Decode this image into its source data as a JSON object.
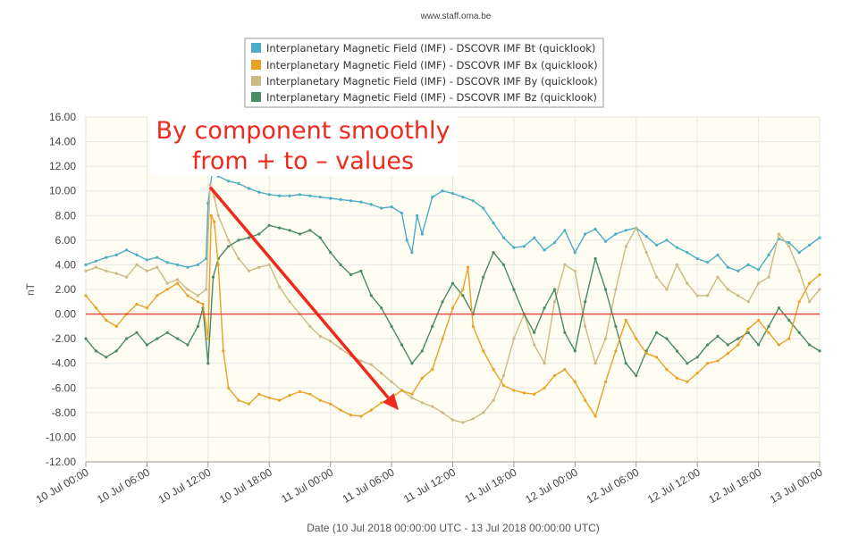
{
  "credit": "www.staff.oma.be",
  "colors": {
    "Bt": "#4cadc6",
    "Bx": "#e8a227",
    "By": "#cdb985",
    "Bz": "#4a8a64",
    "zero_line": "#e0403a",
    "annotation": "#ee2a1e",
    "plot_bg": "#fffdf2"
  },
  "chart_data": {
    "type": "line",
    "xlabel": "Date (10 Jul 2018 00:00:00 UTC - 13 Jul 2018 00:00:00 UTC)",
    "ylabel": "nT",
    "ylim": [
      -12,
      16
    ],
    "xlim_hours": [
      0,
      72
    ],
    "grid": true,
    "legend_position": "top-center",
    "y_ticks": [
      "16.00",
      "14.00",
      "12.00",
      "10.00",
      "8.00",
      "6.00",
      "4.00",
      "2.00",
      "0.00",
      "-2.00",
      "-4.00",
      "-6.00",
      "-8.00",
      "-10.00",
      "-12.00"
    ],
    "x_ticks": [
      "10 Jul 00:00",
      "10 Jul 06:00",
      "10 Jul 12:00",
      "10 Jul 18:00",
      "11 Jul 00:00",
      "11 Jul 06:00",
      "11 Jul 12:00",
      "11 Jul 18:00",
      "12 Jul 00:00",
      "12 Jul 06:00",
      "12 Jul 12:00",
      "12 Jul 18:00",
      "13 Jul 00:00"
    ],
    "series": [
      {
        "name": "Interplanetary Magnetic Field (IMF) - DSCOVR IMF Bt (quicklook)",
        "key": "Bt",
        "points": [
          [
            0,
            4.0
          ],
          [
            1,
            4.3
          ],
          [
            2,
            4.6
          ],
          [
            3,
            4.8
          ],
          [
            4,
            5.2
          ],
          [
            5,
            4.8
          ],
          [
            6,
            4.4
          ],
          [
            7,
            4.6
          ],
          [
            8,
            4.2
          ],
          [
            9,
            4.0
          ],
          [
            10,
            3.8
          ],
          [
            11,
            4.0
          ],
          [
            11.8,
            4.5
          ],
          [
            12.0,
            9.0
          ],
          [
            12.4,
            11.5
          ],
          [
            13,
            11.2
          ],
          [
            14,
            10.8
          ],
          [
            15,
            10.6
          ],
          [
            16,
            10.2
          ],
          [
            17,
            9.9
          ],
          [
            18,
            9.7
          ],
          [
            19,
            9.6
          ],
          [
            20,
            9.6
          ],
          [
            21,
            9.7
          ],
          [
            22,
            9.6
          ],
          [
            23,
            9.5
          ],
          [
            24,
            9.4
          ],
          [
            25,
            9.3
          ],
          [
            26,
            9.2
          ],
          [
            27,
            9.1
          ],
          [
            28,
            8.9
          ],
          [
            29,
            8.6
          ],
          [
            30,
            8.7
          ],
          [
            31,
            8.2
          ],
          [
            31.5,
            6.0
          ],
          [
            32,
            5.0
          ],
          [
            32.5,
            8.0
          ],
          [
            33,
            6.5
          ],
          [
            34,
            9.5
          ],
          [
            35,
            10.0
          ],
          [
            36,
            9.8
          ],
          [
            37,
            9.5
          ],
          [
            38,
            9.2
          ],
          [
            39,
            8.6
          ],
          [
            40,
            7.4
          ],
          [
            41,
            6.2
          ],
          [
            42,
            5.4
          ],
          [
            43,
            5.5
          ],
          [
            44,
            6.2
          ],
          [
            45,
            5.2
          ],
          [
            46,
            5.8
          ],
          [
            47,
            6.8
          ],
          [
            48,
            5.0
          ],
          [
            49,
            6.5
          ],
          [
            50,
            6.9
          ],
          [
            51,
            5.9
          ],
          [
            52,
            6.5
          ],
          [
            53,
            6.8
          ],
          [
            54,
            7.0
          ],
          [
            55,
            6.3
          ],
          [
            56,
            5.6
          ],
          [
            57,
            6.0
          ],
          [
            58,
            5.4
          ],
          [
            59,
            5.0
          ],
          [
            60,
            4.5
          ],
          [
            61,
            4.2
          ],
          [
            62,
            4.8
          ],
          [
            63,
            3.8
          ],
          [
            64,
            3.5
          ],
          [
            65,
            4.0
          ],
          [
            66,
            3.6
          ],
          [
            67,
            4.8
          ],
          [
            68,
            6.1
          ],
          [
            69,
            5.8
          ],
          [
            70,
            5.0
          ],
          [
            71,
            5.6
          ],
          [
            72,
            6.2
          ]
        ]
      },
      {
        "name": "Interplanetary Magnetic Field (IMF) - DSCOVR IMF Bx (quicklook)",
        "key": "Bx",
        "points": [
          [
            0,
            1.5
          ],
          [
            1,
            0.5
          ],
          [
            2,
            -0.5
          ],
          [
            3,
            -1.0
          ],
          [
            4,
            0.0
          ],
          [
            5,
            0.8
          ],
          [
            6,
            0.5
          ],
          [
            7,
            1.5
          ],
          [
            8,
            2.0
          ],
          [
            9,
            2.5
          ],
          [
            10,
            1.5
          ],
          [
            11,
            1.0
          ],
          [
            11.5,
            0.8
          ],
          [
            12,
            -2.0
          ],
          [
            12.3,
            8.0
          ],
          [
            12.6,
            7.5
          ],
          [
            13,
            4.0
          ],
          [
            13.5,
            -3.0
          ],
          [
            14,
            -6.0
          ],
          [
            15,
            -7.0
          ],
          [
            16,
            -7.3
          ],
          [
            17,
            -6.5
          ],
          [
            18,
            -6.8
          ],
          [
            19,
            -7.0
          ],
          [
            20,
            -6.6
          ],
          [
            21,
            -6.3
          ],
          [
            22,
            -6.5
          ],
          [
            23,
            -7.0
          ],
          [
            24,
            -7.3
          ],
          [
            25,
            -7.8
          ],
          [
            26,
            -8.2
          ],
          [
            27,
            -8.3
          ],
          [
            28,
            -7.8
          ],
          [
            29,
            -7.2
          ],
          [
            30,
            -6.8
          ],
          [
            31,
            -6.2
          ],
          [
            32,
            -6.5
          ],
          [
            33,
            -5.2
          ],
          [
            34,
            -4.5
          ],
          [
            35,
            -2.0
          ],
          [
            36,
            0.5
          ],
          [
            37,
            2.0
          ],
          [
            37.5,
            3.8
          ],
          [
            38,
            -1.0
          ],
          [
            39,
            -3.0
          ],
          [
            40,
            -4.5
          ],
          [
            41,
            -5.8
          ],
          [
            42,
            -6.2
          ],
          [
            43,
            -6.4
          ],
          [
            44,
            -6.5
          ],
          [
            45,
            -6.0
          ],
          [
            46,
            -5.0
          ],
          [
            47,
            -4.5
          ],
          [
            48,
            -5.5
          ],
          [
            49,
            -7.0
          ],
          [
            50,
            -8.3
          ],
          [
            51,
            -5.5
          ],
          [
            52,
            -3.0
          ],
          [
            53,
            -0.5
          ],
          [
            54,
            -2.0
          ],
          [
            55,
            -3.2
          ],
          [
            56,
            -3.5
          ],
          [
            57,
            -4.5
          ],
          [
            58,
            -5.2
          ],
          [
            59,
            -5.5
          ],
          [
            60,
            -4.8
          ],
          [
            61,
            -4.0
          ],
          [
            62,
            -3.8
          ],
          [
            63,
            -3.2
          ],
          [
            64,
            -2.5
          ],
          [
            65,
            -1.2
          ],
          [
            66,
            -0.5
          ],
          [
            67,
            -1.5
          ],
          [
            68,
            -2.5
          ],
          [
            69,
            -2.0
          ],
          [
            70,
            1.0
          ],
          [
            71,
            2.5
          ],
          [
            72,
            3.2
          ]
        ]
      },
      {
        "name": "Interplanetary Magnetic Field (IMF) - DSCOVR IMF By (quicklook)",
        "key": "By",
        "points": [
          [
            0,
            3.5
          ],
          [
            1,
            3.8
          ],
          [
            2,
            3.5
          ],
          [
            3,
            3.3
          ],
          [
            4,
            3.0
          ],
          [
            5,
            4.0
          ],
          [
            6,
            3.5
          ],
          [
            7,
            3.8
          ],
          [
            8,
            2.5
          ],
          [
            9,
            2.8
          ],
          [
            10,
            2.0
          ],
          [
            11,
            1.5
          ],
          [
            11.8,
            2.0
          ],
          [
            12.2,
            10.5
          ],
          [
            12.6,
            9.5
          ],
          [
            13,
            8.0
          ],
          [
            14,
            6.0
          ],
          [
            15,
            4.5
          ],
          [
            16,
            3.5
          ],
          [
            17,
            3.8
          ],
          [
            18,
            4.0
          ],
          [
            19,
            2.2
          ],
          [
            20,
            1.0
          ],
          [
            21,
            0.0
          ],
          [
            22,
            -1.0
          ],
          [
            23,
            -1.8
          ],
          [
            24,
            -2.2
          ],
          [
            25,
            -2.8
          ],
          [
            26,
            -3.4
          ],
          [
            27,
            -3.8
          ],
          [
            28,
            -4.1
          ],
          [
            29,
            -4.8
          ],
          [
            30,
            -5.5
          ],
          [
            31,
            -6.2
          ],
          [
            32,
            -6.8
          ],
          [
            33,
            -7.2
          ],
          [
            34,
            -7.5
          ],
          [
            35,
            -8.0
          ],
          [
            36,
            -8.6
          ],
          [
            37,
            -8.8
          ],
          [
            38,
            -8.5
          ],
          [
            39,
            -8.0
          ],
          [
            40,
            -7.0
          ],
          [
            41,
            -5.0
          ],
          [
            42,
            -2.0
          ],
          [
            43,
            0.0
          ],
          [
            44,
            -2.5
          ],
          [
            45,
            -4.0
          ],
          [
            46,
            1.0
          ],
          [
            47,
            4.0
          ],
          [
            48,
            3.5
          ],
          [
            49,
            -1.0
          ],
          [
            50,
            -4.0
          ],
          [
            51,
            -2.0
          ],
          [
            52,
            2.0
          ],
          [
            53,
            5.5
          ],
          [
            54,
            7.0
          ],
          [
            55,
            5.0
          ],
          [
            56,
            3.0
          ],
          [
            57,
            2.0
          ],
          [
            58,
            4.0
          ],
          [
            59,
            2.5
          ],
          [
            60,
            1.5
          ],
          [
            61,
            1.5
          ],
          [
            62,
            3.0
          ],
          [
            63,
            2.0
          ],
          [
            64,
            1.5
          ],
          [
            65,
            1.0
          ],
          [
            66,
            2.5
          ],
          [
            67,
            3.0
          ],
          [
            68,
            6.5
          ],
          [
            69,
            5.5
          ],
          [
            70,
            3.5
          ],
          [
            71,
            1.0
          ],
          [
            72,
            2.0
          ]
        ]
      },
      {
        "name": "Interplanetary Magnetic Field (IMF) - DSCOVR IMF Bz (quicklook)",
        "key": "Bz",
        "points": [
          [
            0,
            -2.0
          ],
          [
            1,
            -3.0
          ],
          [
            2,
            -3.5
          ],
          [
            3,
            -3.0
          ],
          [
            4,
            -2.0
          ],
          [
            5,
            -1.5
          ],
          [
            6,
            -2.5
          ],
          [
            7,
            -2.0
          ],
          [
            8,
            -1.5
          ],
          [
            9,
            -2.0
          ],
          [
            10,
            -2.5
          ],
          [
            11,
            -1.0
          ],
          [
            11.5,
            0.5
          ],
          [
            12,
            -4.0
          ],
          [
            12.5,
            3.0
          ],
          [
            13,
            4.5
          ],
          [
            14,
            5.5
          ],
          [
            15,
            6.0
          ],
          [
            16,
            6.2
          ],
          [
            17,
            6.5
          ],
          [
            18,
            7.2
          ],
          [
            19,
            7.0
          ],
          [
            20,
            6.8
          ],
          [
            21,
            6.5
          ],
          [
            22,
            6.8
          ],
          [
            23,
            6.2
          ],
          [
            24,
            5.0
          ],
          [
            25,
            4.0
          ],
          [
            26,
            3.2
          ],
          [
            27,
            3.5
          ],
          [
            28,
            1.5
          ],
          [
            29,
            0.5
          ],
          [
            30,
            -1.0
          ],
          [
            31,
            -2.5
          ],
          [
            32,
            -4.0
          ],
          [
            33,
            -3.0
          ],
          [
            34,
            -1.0
          ],
          [
            35,
            1.0
          ],
          [
            36,
            2.5
          ],
          [
            37,
            1.5
          ],
          [
            38,
            0.0
          ],
          [
            39,
            3.0
          ],
          [
            40,
            5.0
          ],
          [
            41,
            4.0
          ],
          [
            42,
            2.0
          ],
          [
            43,
            0.0
          ],
          [
            44,
            -1.5
          ],
          [
            45,
            0.5
          ],
          [
            46,
            2.0
          ],
          [
            47,
            -1.5
          ],
          [
            48,
            -3.0
          ],
          [
            49,
            1.0
          ],
          [
            50,
            4.5
          ],
          [
            51,
            2.0
          ],
          [
            52,
            -1.0
          ],
          [
            53,
            -4.0
          ],
          [
            54,
            -5.0
          ],
          [
            55,
            -3.0
          ],
          [
            56,
            -1.5
          ],
          [
            57,
            -2.0
          ],
          [
            58,
            -3.0
          ],
          [
            59,
            -4.0
          ],
          [
            60,
            -3.5
          ],
          [
            61,
            -2.5
          ],
          [
            62,
            -1.8
          ],
          [
            63,
            -2.5
          ],
          [
            64,
            -2.0
          ],
          [
            65,
            -1.5
          ],
          [
            66,
            -2.5
          ],
          [
            67,
            -1.0
          ],
          [
            68,
            0.5
          ],
          [
            69,
            -0.5
          ],
          [
            70,
            -1.5
          ],
          [
            71,
            -2.5
          ],
          [
            72,
            -3.0
          ]
        ]
      }
    ],
    "annotations": [
      {
        "text_lines": [
          "By component smoothly",
          "from + to – values"
        ],
        "arrow_from": [
          12.2,
          10.3
        ],
        "arrow_to": [
          30.7,
          -7.8
        ]
      }
    ]
  }
}
